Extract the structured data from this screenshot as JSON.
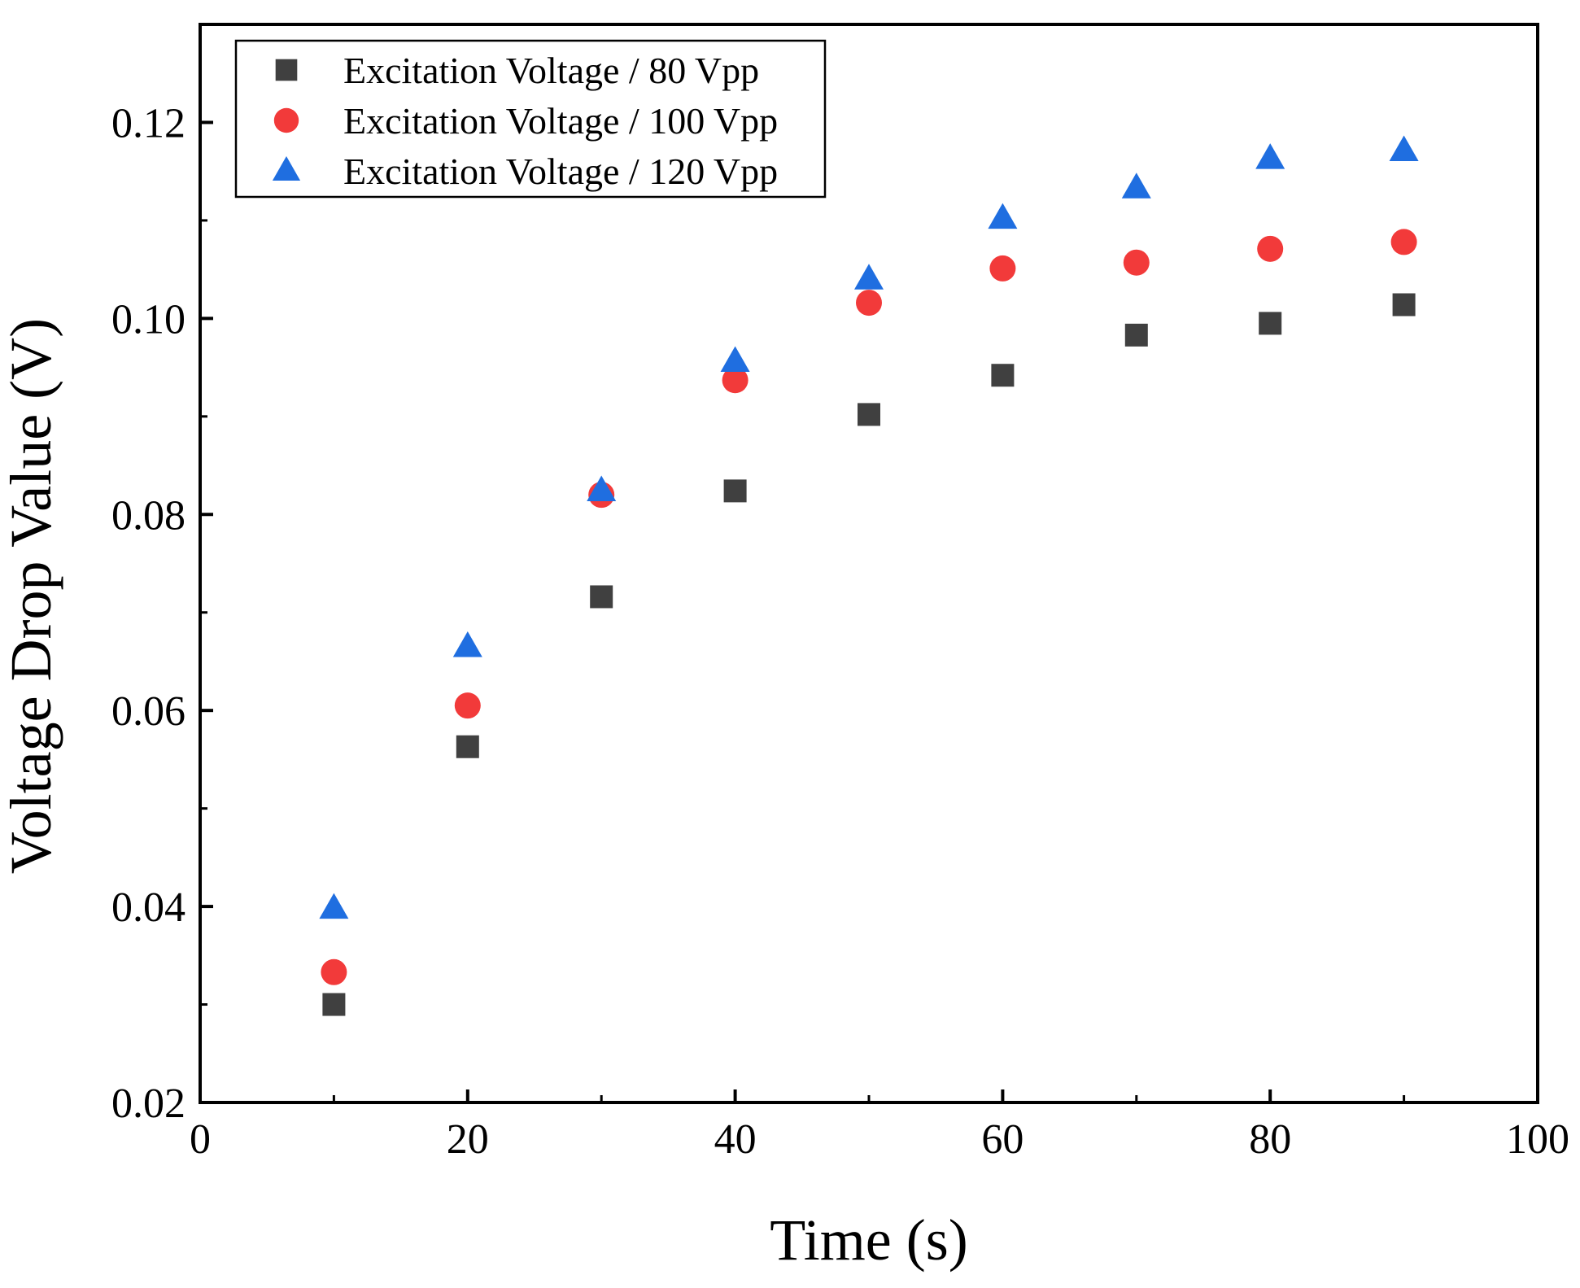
{
  "chart_data": {
    "type": "scatter",
    "title": "",
    "xlabel": "Time (s)",
    "ylabel": "Voltage Drop Value (V)",
    "xlim": [
      0,
      100
    ],
    "ylim": [
      0.02,
      0.13
    ],
    "xticks": [
      0,
      20,
      40,
      60,
      80,
      100
    ],
    "xtick_labels": [
      "0",
      "20",
      "40",
      "60",
      "80",
      "100"
    ],
    "yticks": [
      0.02,
      0.04,
      0.06,
      0.08,
      0.1,
      0.12
    ],
    "ytick_labels": [
      "0.02",
      "0.04",
      "0.06",
      "0.08",
      "0.10",
      "0.12"
    ],
    "grid": false,
    "legend_position": "top-left",
    "x": [
      10,
      20,
      30,
      40,
      50,
      60,
      70,
      80,
      90
    ],
    "series": [
      {
        "name": "Excitation Voltage / 80 Vpp",
        "marker": "square",
        "color": "#404040",
        "values": [
          0.03,
          0.0563,
          0.0716,
          0.0824,
          0.0902,
          0.0942,
          0.0983,
          0.0995,
          0.1014
        ]
      },
      {
        "name": "Excitation Voltage / 100 Vpp",
        "marker": "circle",
        "color": "#f23a3a",
        "values": [
          0.0333,
          0.0605,
          0.082,
          0.0937,
          0.1016,
          0.1051,
          0.1057,
          0.1071,
          0.1078
        ]
      },
      {
        "name": "Excitation Voltage / 120 Vpp",
        "marker": "triangle",
        "color": "#1f6ee0",
        "values": [
          0.0398,
          0.0665,
          0.0824,
          0.0956,
          0.104,
          0.1102,
          0.1133,
          0.1163,
          0.1171
        ]
      }
    ]
  }
}
